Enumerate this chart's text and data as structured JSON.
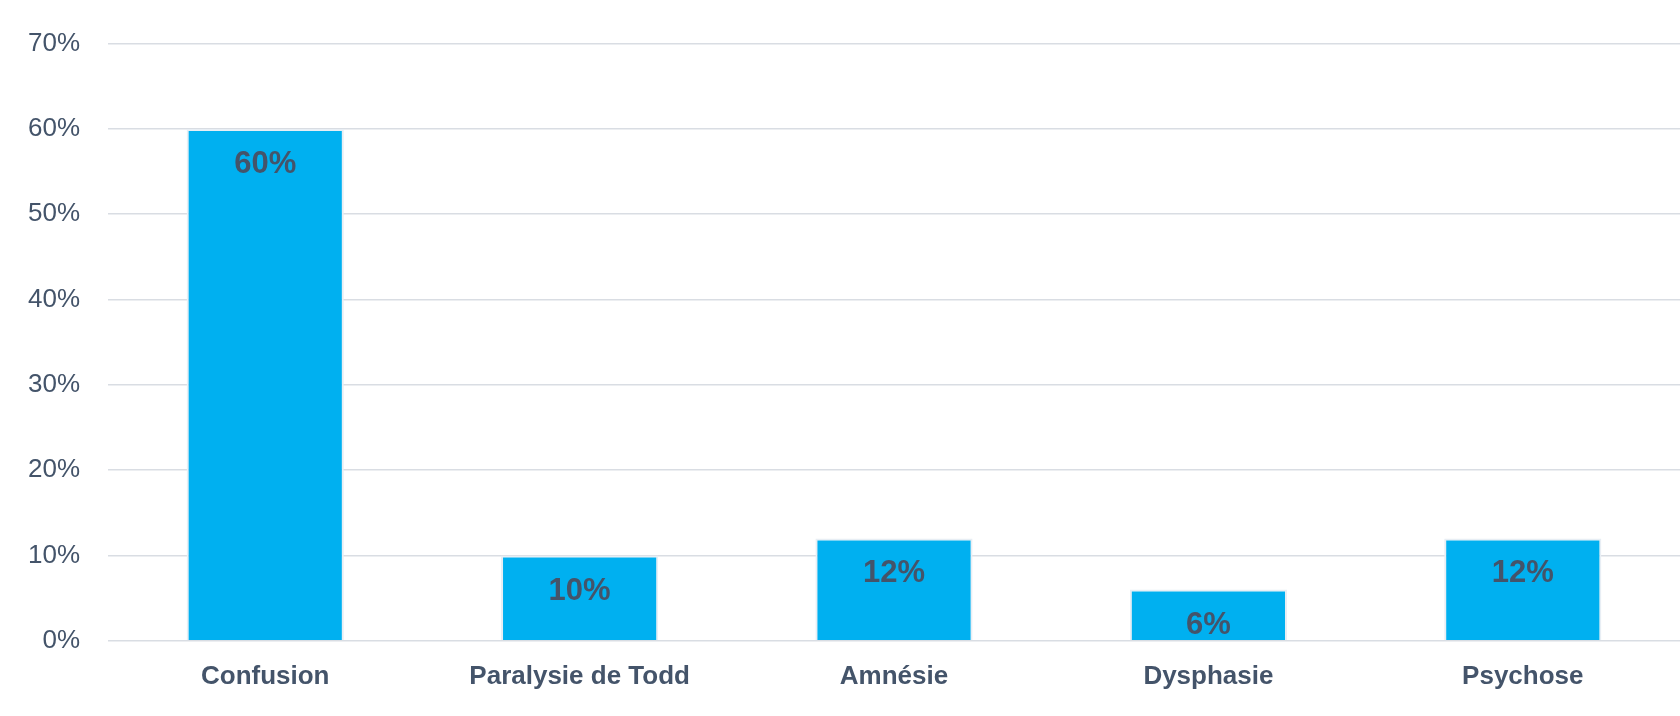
{
  "chart_data": {
    "type": "bar",
    "categories": [
      "Confusion",
      "Paralysie de Todd",
      "Amnésie",
      "Dysphasie",
      "Psychose"
    ],
    "values": [
      60,
      10,
      12,
      6,
      12
    ],
    "color": "#00b0f0",
    "value_labels": [
      "60%",
      "10%",
      "12%",
      "6%",
      "12%"
    ],
    "ylim": [
      0,
      70
    ],
    "yticks": [
      {
        "value": 0,
        "label": "0%"
      },
      {
        "value": 10,
        "label": "10%"
      },
      {
        "value": 20,
        "label": "20%"
      },
      {
        "value": 30,
        "label": "30%"
      },
      {
        "value": 40,
        "label": "40%"
      },
      {
        "value": 50,
        "label": "50%"
      },
      {
        "value": 60,
        "label": "60%"
      },
      {
        "value": 70,
        "label": "70%"
      }
    ],
    "grid": "y",
    "legend": false
  }
}
